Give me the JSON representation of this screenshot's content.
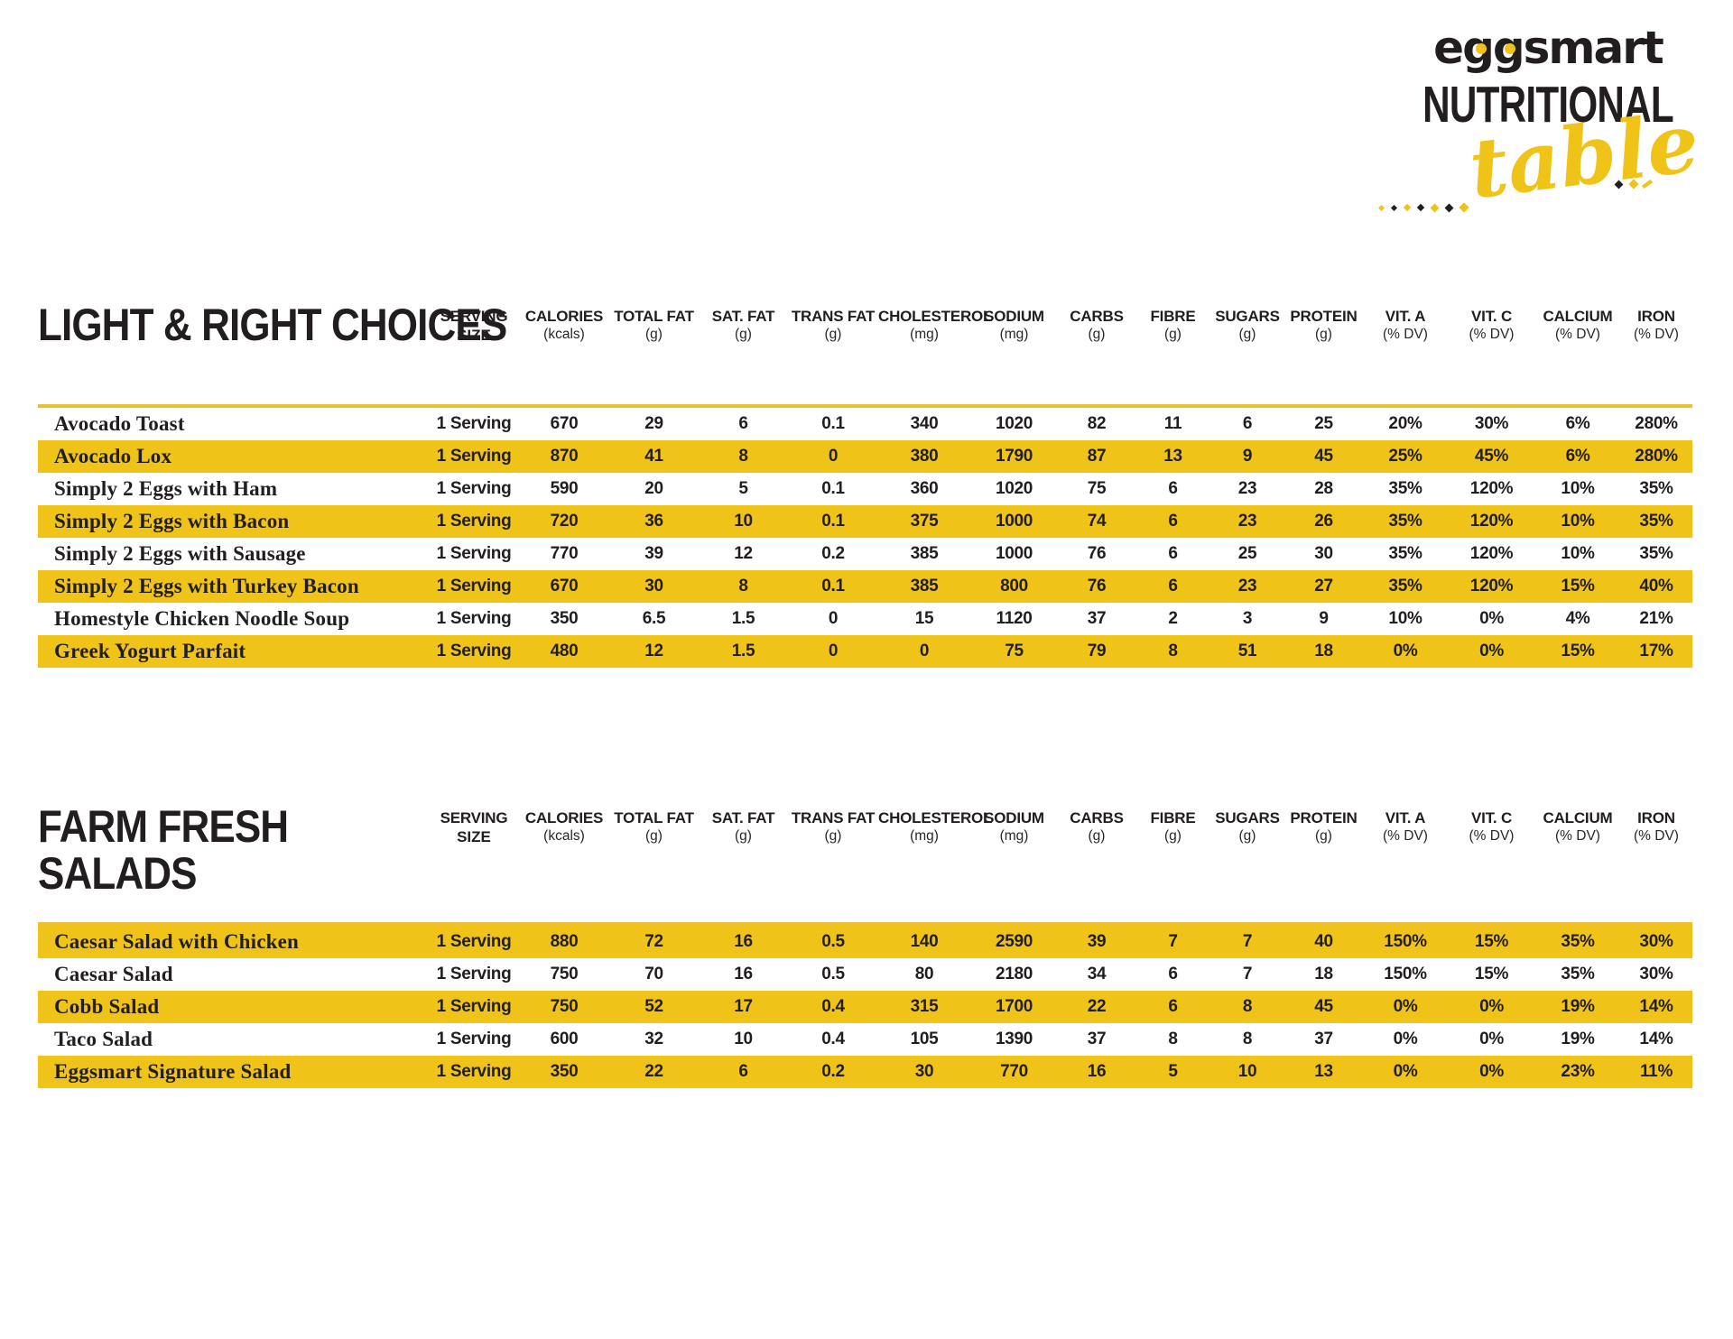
{
  "logo": {
    "brand": "eggsmart",
    "title": "NUTRITIONAL",
    "script": "table"
  },
  "colors": {
    "row_highlight": "#F0C319",
    "divider_line": "#ECC035",
    "ink": "#221E1F"
  },
  "columns": [
    {
      "label": "SERVING",
      "unit": "SIZE",
      "unit_bold": true
    },
    {
      "label": "CALORIES",
      "unit": "(kcals)"
    },
    {
      "label": "TOTAL FAT",
      "unit": "(g)"
    },
    {
      "label": "SAT. FAT",
      "unit": "(g)"
    },
    {
      "label": "TRANS FAT",
      "unit": "(g)"
    },
    {
      "label": "CHOLESTEROL",
      "unit": "(mg)"
    },
    {
      "label": "SODIUM",
      "unit": "(mg)"
    },
    {
      "label": "CARBS",
      "unit": "(g)"
    },
    {
      "label": "FIBRE",
      "unit": "(g)"
    },
    {
      "label": "SUGARS",
      "unit": "(g)"
    },
    {
      "label": "PROTEIN",
      "unit": "(g)"
    },
    {
      "label": "VIT. A",
      "unit": "(% DV)"
    },
    {
      "label": "VIT. C",
      "unit": "(% DV)"
    },
    {
      "label": "CALCIUM",
      "unit": "(% DV)"
    },
    {
      "label": "IRON",
      "unit": "(% DV)"
    }
  ],
  "sections": [
    {
      "title_lines": [
        "LIGHT & RIGHT CHOICES"
      ],
      "rows": [
        {
          "name": "Avocado Toast",
          "highlight": false,
          "values": [
            "1 Serving",
            "670",
            "29",
            "6",
            "0.1",
            "340",
            "1020",
            "82",
            "11",
            "6",
            "25",
            "20%",
            "30%",
            "6%",
            "280%"
          ]
        },
        {
          "name": "Avocado Lox",
          "highlight": true,
          "values": [
            "1 Serving",
            "870",
            "41",
            "8",
            "0",
            "380",
            "1790",
            "87",
            "13",
            "9",
            "45",
            "25%",
            "45%",
            "6%",
            "280%"
          ]
        },
        {
          "name": "Simply 2 Eggs with Ham",
          "highlight": false,
          "values": [
            "1 Serving",
            "590",
            "20",
            "5",
            "0.1",
            "360",
            "1020",
            "75",
            "6",
            "23",
            "28",
            "35%",
            "120%",
            "10%",
            "35%"
          ]
        },
        {
          "name": "Simply 2 Eggs with Bacon",
          "highlight": true,
          "values": [
            "1 Serving",
            "720",
            "36",
            "10",
            "0.1",
            "375",
            "1000",
            "74",
            "6",
            "23",
            "26",
            "35%",
            "120%",
            "10%",
            "35%"
          ]
        },
        {
          "name": "Simply 2 Eggs with Sausage",
          "highlight": false,
          "values": [
            "1 Serving",
            "770",
            "39",
            "12",
            "0.2",
            "385",
            "1000",
            "76",
            "6",
            "25",
            "30",
            "35%",
            "120%",
            "10%",
            "35%"
          ]
        },
        {
          "name": "Simply 2 Eggs with Turkey Bacon",
          "highlight": true,
          "values": [
            "1 Serving",
            "670",
            "30",
            "8",
            "0.1",
            "385",
            "800",
            "76",
            "6",
            "23",
            "27",
            "35%",
            "120%",
            "15%",
            "40%"
          ]
        },
        {
          "name": "Homestyle Chicken Noodle Soup",
          "highlight": false,
          "values": [
            "1 Serving",
            "350",
            "6.5",
            "1.5",
            "0",
            "15",
            "1120",
            "37",
            "2",
            "3",
            "9",
            "10%",
            "0%",
            "4%",
            "21%"
          ]
        },
        {
          "name": "Greek Yogurt Parfait",
          "highlight": true,
          "values": [
            "1 Serving",
            "480",
            "12",
            "1.5",
            "0",
            "0",
            "75",
            "79",
            "8",
            "51",
            "18",
            "0%",
            "0%",
            "15%",
            "17%"
          ]
        }
      ]
    },
    {
      "title_lines": [
        "FARM FRESH",
        "SALADS"
      ],
      "rows": [
        {
          "name": "Caesar Salad with Chicken",
          "highlight": true,
          "values": [
            "1 Serving",
            "880",
            "72",
            "16",
            "0.5",
            "140",
            "2590",
            "39",
            "7",
            "7",
            "40",
            "150%",
            "15%",
            "35%",
            "30%"
          ]
        },
        {
          "name": "Caesar Salad",
          "highlight": false,
          "values": [
            "1 Serving",
            "750",
            "70",
            "16",
            "0.5",
            "80",
            "2180",
            "34",
            "6",
            "7",
            "18",
            "150%",
            "15%",
            "35%",
            "30%"
          ]
        },
        {
          "name": "Cobb Salad",
          "highlight": true,
          "values": [
            "1 Serving",
            "750",
            "52",
            "17",
            "0.4",
            "315",
            "1700",
            "22",
            "6",
            "8",
            "45",
            "0%",
            "0%",
            "19%",
            "14%"
          ]
        },
        {
          "name": "Taco Salad",
          "highlight": false,
          "values": [
            "1 Serving",
            "600",
            "32",
            "10",
            "0.4",
            "105",
            "1390",
            "37",
            "8",
            "8",
            "37",
            "0%",
            "0%",
            "19%",
            "14%"
          ]
        },
        {
          "name": "Eggsmart Signature Salad",
          "highlight": true,
          "values": [
            "1 Serving",
            "350",
            "22",
            "6",
            "0.2",
            "30",
            "770",
            "16",
            "5",
            "10",
            "13",
            "0%",
            "0%",
            "23%",
            "11%"
          ]
        }
      ]
    }
  ]
}
